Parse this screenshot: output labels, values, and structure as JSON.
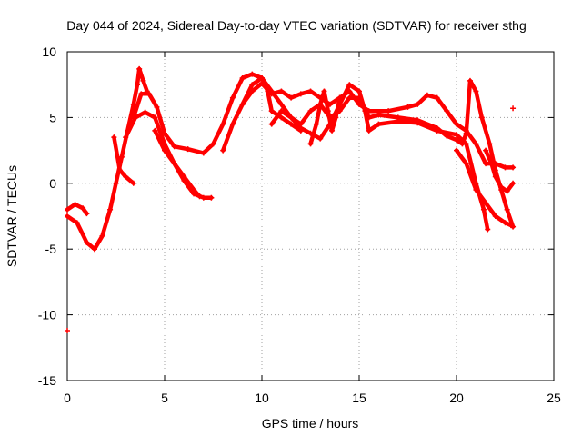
{
  "chart_data": {
    "type": "scatter",
    "title": "Day 044 of 2024, Sidereal Day-to-day VTEC variation (SDTVAR) for receiver sthg",
    "xlabel": "GPS time / hours",
    "ylabel": "SDTVAR / TECUs",
    "xlim": [
      0,
      25
    ],
    "ylim": [
      -15,
      10
    ],
    "xticks": [
      0,
      5,
      10,
      15,
      20,
      25
    ],
    "yticks": [
      -15,
      -10,
      -5,
      0,
      5,
      10
    ],
    "grid": true,
    "marker": "plus",
    "color": "#ff0000",
    "series": [
      {
        "name": "trace-1",
        "points": [
          [
            0.0,
            -2.5
          ],
          [
            0.5,
            -3.0
          ],
          [
            1.0,
            -4.5
          ],
          [
            1.4,
            -5.0
          ],
          [
            1.8,
            -4.0
          ],
          [
            2.2,
            -2.0
          ],
          [
            2.5,
            0.0
          ],
          [
            2.8,
            2.0
          ],
          [
            3.1,
            4.0
          ],
          [
            3.4,
            6.0
          ],
          [
            3.6,
            7.5
          ],
          [
            3.7,
            8.7
          ],
          [
            3.9,
            7.8
          ],
          [
            4.1,
            7.0
          ]
        ]
      },
      {
        "name": "trace-2",
        "points": [
          [
            3.4,
            5.0
          ],
          [
            3.8,
            6.8
          ],
          [
            4.2,
            6.8
          ],
          [
            4.6,
            5.8
          ],
          [
            5.0,
            3.8
          ],
          [
            5.5,
            2.8
          ],
          [
            6.2,
            2.6
          ],
          [
            7.0,
            2.3
          ],
          [
            7.5,
            3.0
          ],
          [
            8.0,
            4.5
          ],
          [
            8.5,
            6.5
          ],
          [
            9.0,
            8.0
          ],
          [
            9.5,
            8.3
          ],
          [
            10.0,
            8.0
          ],
          [
            10.3,
            7.0
          ],
          [
            10.5,
            5.5
          ],
          [
            11.0,
            5.0
          ],
          [
            11.5,
            4.5
          ],
          [
            12.0,
            4.0
          ]
        ]
      },
      {
        "name": "trace-3",
        "points": [
          [
            3.0,
            3.5
          ],
          [
            3.5,
            5.0
          ],
          [
            4.0,
            5.4
          ],
          [
            4.5,
            5.0
          ],
          [
            5.0,
            3.0
          ],
          [
            5.5,
            1.5
          ],
          [
            6.0,
            0.2
          ],
          [
            6.5,
            -0.8
          ],
          [
            7.0,
            -1.1
          ],
          [
            7.4,
            -1.1
          ]
        ]
      },
      {
        "name": "trace-4",
        "points": [
          [
            4.5,
            4.0
          ],
          [
            5.0,
            2.5
          ],
          [
            5.5,
            1.5
          ],
          [
            6.0,
            0.5
          ],
          [
            6.5,
            -0.5
          ],
          [
            6.8,
            -1.0
          ]
        ]
      },
      {
        "name": "trace-5",
        "points": [
          [
            8.0,
            2.5
          ],
          [
            8.5,
            4.5
          ],
          [
            9.0,
            6.0
          ],
          [
            9.5,
            7.5
          ],
          [
            10.0,
            8.0
          ],
          [
            10.5,
            7.0
          ],
          [
            11.0,
            6.0
          ],
          [
            11.5,
            5.0
          ],
          [
            12.0,
            4.2
          ],
          [
            12.5,
            3.8
          ],
          [
            13.0,
            3.4
          ],
          [
            13.5,
            4.5
          ],
          [
            14.0,
            6.0
          ],
          [
            14.5,
            7.5
          ],
          [
            15.0,
            7.0
          ],
          [
            15.3,
            5.5
          ],
          [
            15.5,
            4.0
          ],
          [
            16.0,
            4.5
          ],
          [
            17.0,
            4.7
          ],
          [
            18.0,
            4.6
          ],
          [
            19.0,
            4.0
          ],
          [
            20.0,
            3.7
          ],
          [
            20.5,
            3.0
          ],
          [
            21.0,
            0.0
          ],
          [
            21.4,
            -2.0
          ],
          [
            21.6,
            -3.5
          ]
        ]
      },
      {
        "name": "trace-6",
        "points": [
          [
            9.0,
            6.0
          ],
          [
            9.5,
            7.0
          ],
          [
            10.0,
            7.6
          ],
          [
            10.5,
            6.8
          ],
          [
            11.0,
            7.0
          ],
          [
            11.5,
            6.5
          ],
          [
            12.0,
            6.8
          ],
          [
            12.5,
            7.0
          ],
          [
            13.0,
            6.5
          ],
          [
            13.5,
            6.0
          ],
          [
            14.0,
            6.5
          ],
          [
            14.5,
            7.0
          ],
          [
            15.0,
            6.0
          ],
          [
            15.5,
            5.5
          ],
          [
            16.5,
            5.5
          ],
          [
            17.5,
            5.8
          ],
          [
            18.0,
            6.0
          ],
          [
            18.5,
            6.7
          ],
          [
            19.0,
            6.5
          ],
          [
            19.5,
            5.5
          ],
          [
            20.0,
            4.5
          ],
          [
            20.5,
            4.0
          ],
          [
            21.0,
            3.0
          ],
          [
            21.5,
            1.5
          ],
          [
            22.0,
            1.5
          ],
          [
            22.5,
            1.2
          ],
          [
            22.9,
            1.2
          ]
        ]
      },
      {
        "name": "trace-7",
        "points": [
          [
            10.5,
            4.5
          ],
          [
            11.0,
            5.5
          ],
          [
            11.5,
            5.0
          ],
          [
            12.0,
            4.5
          ],
          [
            12.5,
            5.5
          ],
          [
            13.0,
            6.0
          ],
          [
            13.5,
            5.0
          ],
          [
            14.0,
            5.5
          ],
          [
            14.5,
            6.5
          ],
          [
            15.0,
            6.5
          ],
          [
            15.5,
            5.0
          ],
          [
            16.0,
            5.2
          ],
          [
            17.0,
            5.0
          ],
          [
            18.0,
            4.8
          ],
          [
            19.0,
            4.2
          ],
          [
            19.5,
            3.6
          ],
          [
            20.0,
            3.3
          ],
          [
            20.3,
            3.0
          ],
          [
            20.5,
            3.8
          ],
          [
            20.7,
            7.8
          ],
          [
            21.0,
            7.0
          ],
          [
            21.3,
            5.0
          ],
          [
            21.7,
            3.0
          ],
          [
            22.0,
            1.0
          ],
          [
            22.3,
            -0.5
          ],
          [
            22.6,
            -2.0
          ],
          [
            22.9,
            -3.3
          ]
        ]
      },
      {
        "name": "trace-8",
        "points": [
          [
            20.0,
            2.5
          ],
          [
            20.5,
            1.5
          ],
          [
            21.0,
            -0.5
          ],
          [
            21.5,
            -1.5
          ],
          [
            22.0,
            -2.5
          ],
          [
            22.5,
            -3.0
          ],
          [
            22.8,
            -3.2
          ]
        ]
      },
      {
        "name": "trace-9",
        "points": [
          [
            12.5,
            3.0
          ],
          [
            12.8,
            4.5
          ],
          [
            13.0,
            6.0
          ],
          [
            13.2,
            7.0
          ],
          [
            13.4,
            5.5
          ],
          [
            13.6,
            4.0
          ],
          [
            13.8,
            5.0
          ],
          [
            14.0,
            6.5
          ]
        ]
      },
      {
        "name": "trace-10",
        "points": [
          [
            21.5,
            2.5
          ],
          [
            21.8,
            1.5
          ],
          [
            22.0,
            0.5
          ],
          [
            22.3,
            -0.3
          ],
          [
            22.6,
            -0.6
          ],
          [
            22.9,
            0.0
          ]
        ]
      },
      {
        "name": "trace-11",
        "points": [
          [
            0.0,
            -2.0
          ],
          [
            0.4,
            -1.6
          ],
          [
            0.8,
            -1.9
          ],
          [
            1.0,
            -2.3
          ]
        ]
      },
      {
        "name": "trace-12",
        "points": [
          [
            2.4,
            3.5
          ],
          [
            2.7,
            1.0
          ],
          [
            3.0,
            0.5
          ],
          [
            3.4,
            0.0
          ]
        ]
      },
      {
        "name": "outlier-1",
        "points": [
          [
            0.0,
            -11.2
          ]
        ]
      },
      {
        "name": "outlier-2",
        "points": [
          [
            22.9,
            5.7
          ]
        ]
      }
    ]
  }
}
